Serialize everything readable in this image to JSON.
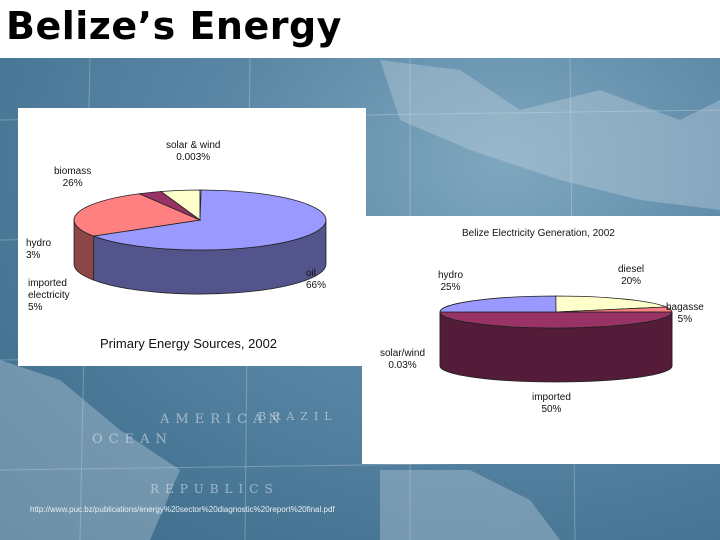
{
  "slide": {
    "title": "Belize’s Energy",
    "source_url": "http://www.puc.bz/publications/energy%20sector%20diagnostic%20report%20final.pdf"
  },
  "background_map_labels": [
    "AMERICAN",
    "BRAZIL",
    "OCEAN",
    "REPUBLICS"
  ],
  "colors": {
    "blue": "#9999ff",
    "salmon": "#ff8080",
    "plum": "#993366",
    "cream": "#ffffcc"
  },
  "chart_data": [
    {
      "type": "pie",
      "title": "Primary Energy Sources, 2002",
      "slices": [
        {
          "name": "oil",
          "label": "oil",
          "value_label": "66%",
          "value": 66,
          "color": "#9999ff"
        },
        {
          "name": "biomass",
          "label": "biomass",
          "value_label": "26%",
          "value": 26,
          "color": "#ff8080"
        },
        {
          "name": "hydro",
          "label": "hydro",
          "value_label": "3%",
          "value": 3,
          "color": "#993366"
        },
        {
          "name": "imported electricity",
          "label": "imported electricity",
          "value_label": "5%",
          "value": 5,
          "color": "#ffffcc"
        },
        {
          "name": "solar & wind",
          "label": "solar & wind",
          "value_label": "0.003%",
          "value": 0.003,
          "color": "#ffffcc"
        }
      ]
    },
    {
      "type": "pie",
      "title": "Belize Electricity Generation, 2002",
      "slices": [
        {
          "name": "imported",
          "label": "imported",
          "value_label": "50%",
          "value": 50,
          "color": "#993366"
        },
        {
          "name": "hydro",
          "label": "hydro",
          "value_label": "25%",
          "value": 25,
          "color": "#9999ff"
        },
        {
          "name": "diesel",
          "label": "diesel",
          "value_label": "20%",
          "value": 20,
          "color": "#ffffcc"
        },
        {
          "name": "bagasse",
          "label": "bagasse",
          "value_label": "5%",
          "value": 5,
          "color": "#ff8080"
        },
        {
          "name": "solar/wind",
          "label": "solar/wind",
          "value_label": "0.03%",
          "value": 0.03,
          "color": "#9999ff"
        }
      ]
    }
  ]
}
